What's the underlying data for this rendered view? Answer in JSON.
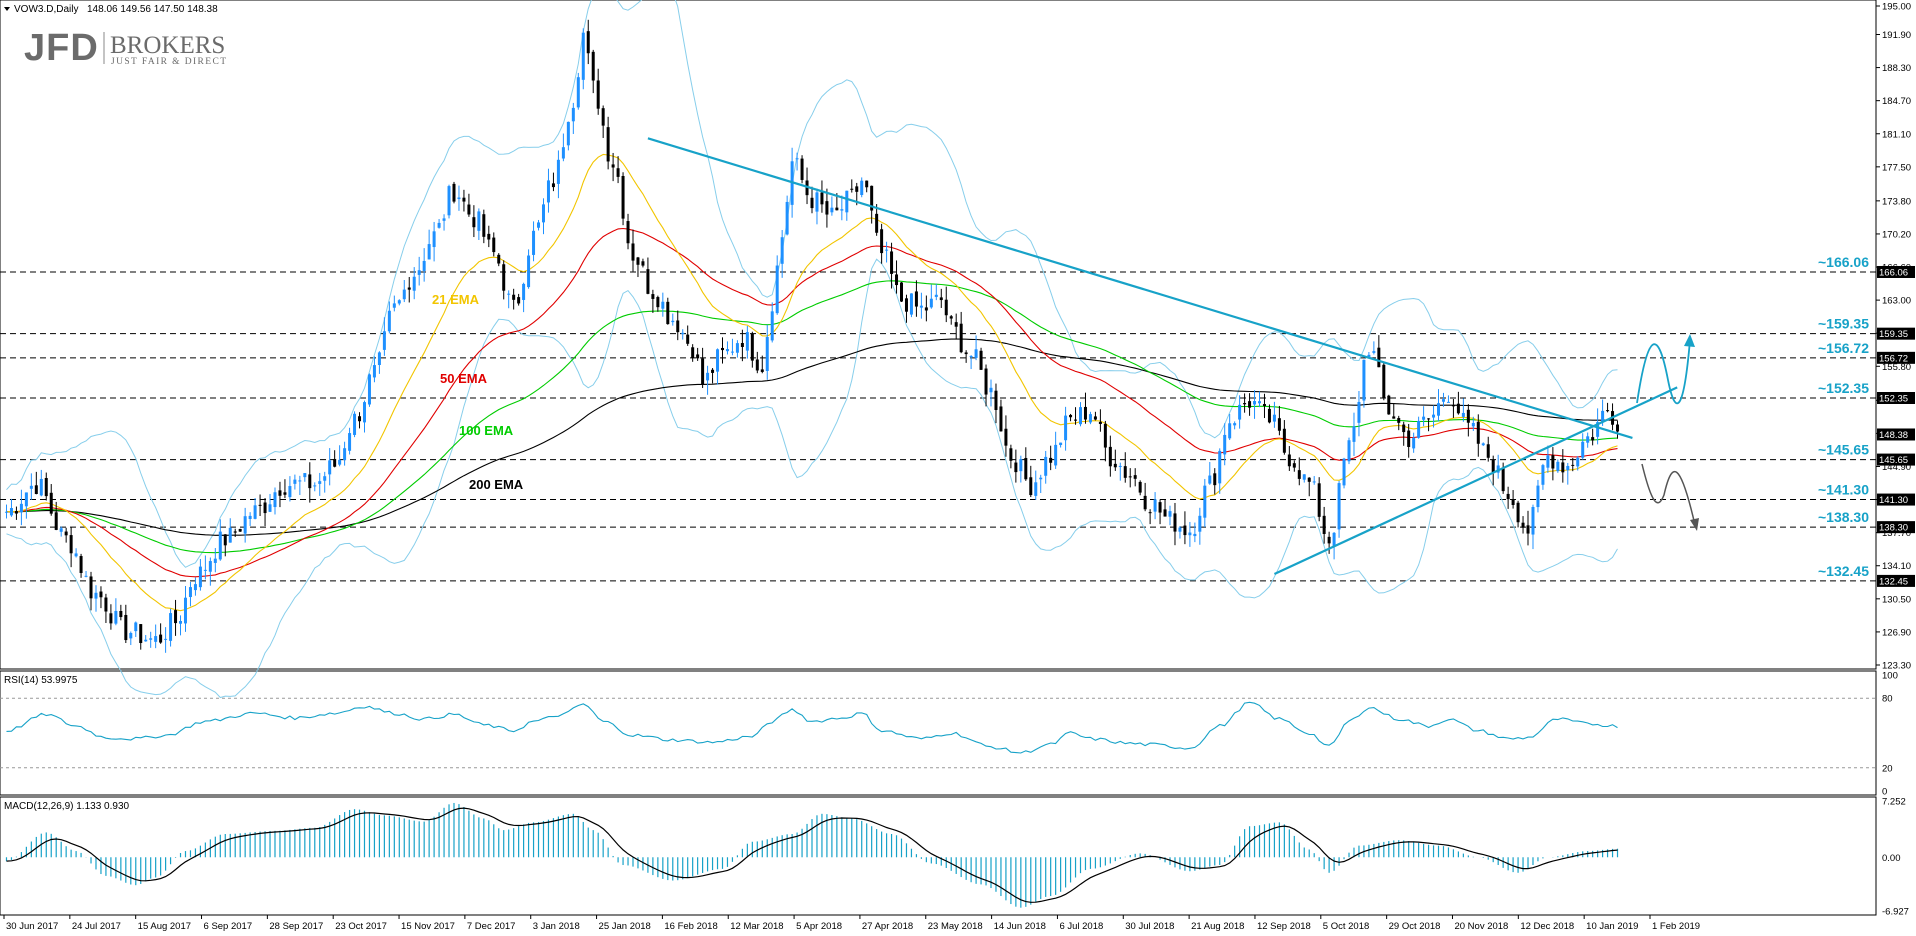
{
  "header": {
    "symbol_label": "VOW3.D,Daily",
    "ohlc_label": "148.06 149.56 147.50 148.38"
  },
  "logo": {
    "jfd": "JFD",
    "brokers": "BROKERS",
    "tagline": "JUST FAIR & DIRECT"
  },
  "colors": {
    "candle_up": "#1e90ff",
    "candle_down": "#000000",
    "ema21": "#f2c500",
    "ema50": "#e00000",
    "ema100": "#00cc00",
    "ema200": "#000000",
    "bollinger": "#87ceeb",
    "trendline": "#17a2c8",
    "level_label": "#17a2c8",
    "rsi_line": "#17a2c8",
    "macd_hist": "#17a2c8",
    "macd_signal": "#000000"
  },
  "chart_data": {
    "type": "candlestick",
    "x_ticks": [
      "30 Jun 2017",
      "24 Jul 2017",
      "15 Aug 2017",
      "6 Sep 2017",
      "28 Sep 2017",
      "23 Oct 2017",
      "15 Nov 2017",
      "7 Dec 2017",
      "3 Jan 2018",
      "25 Jan 2018",
      "16 Feb 2018",
      "12 Mar 2018",
      "5 Apr 2018",
      "27 Apr 2018",
      "23 May 2018",
      "14 Jun 2018",
      "6 Jul 2018",
      "30 Jul 2018",
      "21 Aug 2018",
      "12 Sep 2018",
      "5 Oct 2018",
      "29 Oct 2018",
      "20 Nov 2018",
      "12 Dec 2018",
      "10 Jan 2019",
      "1 Feb 2019"
    ],
    "y_ticks": [
      "195.00",
      "191.90",
      "188.30",
      "184.70",
      "181.10",
      "177.50",
      "173.80",
      "170.20",
      "166.60",
      "163.00",
      "159.40",
      "155.80",
      "152.10",
      "148.50",
      "144.90",
      "141.30",
      "137.70",
      "134.10",
      "130.50",
      "126.90",
      "123.30"
    ],
    "y_range": [
      123.3,
      195.0
    ],
    "horizontal_levels": [
      {
        "value": 166.06,
        "label": "~166.06",
        "tag": "166.06"
      },
      {
        "value": 159.35,
        "label": "~159.35",
        "tag": "159.35"
      },
      {
        "value": 156.72,
        "label": "~156.72",
        "tag": "156.72"
      },
      {
        "value": 152.35,
        "label": "~152.35",
        "tag": "152.35"
      },
      {
        "value": 145.65,
        "label": "~145.65",
        "tag": "145.65"
      },
      {
        "value": 141.3,
        "label": "~141.30",
        "tag": "141.30"
      },
      {
        "value": 138.3,
        "label": "~138.30",
        "tag": "138.30"
      },
      {
        "value": 132.45,
        "label": "~132.45",
        "tag": "132.45"
      }
    ],
    "current_price": {
      "value": 148.38,
      "tag": "148.38"
    },
    "ema_labels": [
      "21 EMA",
      "50 EMA",
      "100 EMA",
      "200 EMA"
    ],
    "anchors": [
      [
        0,
        140
      ],
      [
        6,
        143
      ],
      [
        12,
        137
      ],
      [
        18,
        131
      ],
      [
        24,
        127
      ],
      [
        30,
        126
      ],
      [
        34,
        128
      ],
      [
        38,
        133
      ],
      [
        44,
        137
      ],
      [
        50,
        140
      ],
      [
        56,
        143
      ],
      [
        62,
        143
      ],
      [
        66,
        145
      ],
      [
        70,
        150
      ],
      [
        74,
        155
      ],
      [
        78,
        162
      ],
      [
        82,
        166
      ],
      [
        86,
        170
      ],
      [
        90,
        175
      ],
      [
        94,
        172
      ],
      [
        98,
        168
      ],
      [
        102,
        162
      ],
      [
        106,
        170
      ],
      [
        110,
        176
      ],
      [
        114,
        185
      ],
      [
        116,
        192
      ],
      [
        118,
        186
      ],
      [
        122,
        178
      ],
      [
        126,
        168
      ],
      [
        130,
        164
      ],
      [
        134,
        161
      ],
      [
        138,
        158
      ],
      [
        140,
        154
      ],
      [
        144,
        157
      ],
      [
        148,
        159
      ],
      [
        152,
        156
      ],
      [
        154,
        163
      ],
      [
        156,
        170
      ],
      [
        158,
        178
      ],
      [
        162,
        174
      ],
      [
        166,
        172
      ],
      [
        170,
        174
      ],
      [
        172,
        176
      ],
      [
        176,
        168
      ],
      [
        180,
        163
      ],
      [
        184,
        162
      ],
      [
        188,
        163
      ],
      [
        190,
        160
      ],
      [
        194,
        157
      ],
      [
        198,
        153
      ],
      [
        202,
        146
      ],
      [
        206,
        143
      ],
      [
        210,
        146
      ],
      [
        214,
        150
      ],
      [
        218,
        151
      ],
      [
        222,
        146
      ],
      [
        226,
        144
      ],
      [
        230,
        141
      ],
      [
        234,
        139
      ],
      [
        238,
        138
      ],
      [
        242,
        143
      ],
      [
        246,
        150
      ],
      [
        250,
        152
      ],
      [
        254,
        150
      ],
      [
        258,
        146
      ],
      [
        262,
        143
      ],
      [
        266,
        137
      ],
      [
        270,
        147
      ],
      [
        274,
        158
      ],
      [
        278,
        151
      ],
      [
        282,
        148
      ],
      [
        286,
        150
      ],
      [
        290,
        153
      ],
      [
        294,
        149
      ],
      [
        298,
        146
      ],
      [
        302,
        142
      ],
      [
        306,
        138
      ],
      [
        310,
        146
      ],
      [
        314,
        145
      ],
      [
        318,
        148
      ],
      [
        322,
        151
      ],
      [
        324,
        150
      ]
    ],
    "rsi": {
      "label": "RSI(14) 53.9975",
      "levels": [
        "100",
        "80",
        "20",
        "0"
      ],
      "anchors": [
        [
          0,
          52
        ],
        [
          8,
          66
        ],
        [
          14,
          56
        ],
        [
          20,
          46
        ],
        [
          26,
          45
        ],
        [
          32,
          48
        ],
        [
          40,
          60
        ],
        [
          50,
          67
        ],
        [
          58,
          63
        ],
        [
          66,
          67
        ],
        [
          72,
          73
        ],
        [
          78,
          67
        ],
        [
          84,
          62
        ],
        [
          90,
          66
        ],
        [
          96,
          57
        ],
        [
          102,
          52
        ],
        [
          106,
          60
        ],
        [
          112,
          66
        ],
        [
          116,
          75
        ],
        [
          120,
          60
        ],
        [
          126,
          48
        ],
        [
          134,
          44
        ],
        [
          142,
          42
        ],
        [
          150,
          47
        ],
        [
          154,
          60
        ],
        [
          158,
          70
        ],
        [
          162,
          60
        ],
        [
          168,
          63
        ],
        [
          172,
          67
        ],
        [
          176,
          52
        ],
        [
          184,
          45
        ],
        [
          190,
          50
        ],
        [
          198,
          38
        ],
        [
          204,
          33
        ],
        [
          210,
          40
        ],
        [
          214,
          50
        ],
        [
          218,
          45
        ],
        [
          226,
          41
        ],
        [
          230,
          40
        ],
        [
          238,
          37
        ],
        [
          244,
          56
        ],
        [
          250,
          76
        ],
        [
          256,
          62
        ],
        [
          262,
          50
        ],
        [
          266,
          38
        ],
        [
          270,
          60
        ],
        [
          274,
          72
        ],
        [
          280,
          62
        ],
        [
          286,
          56
        ],
        [
          290,
          62
        ],
        [
          296,
          52
        ],
        [
          302,
          45
        ],
        [
          306,
          46
        ],
        [
          312,
          62
        ],
        [
          318,
          58
        ],
        [
          324,
          56
        ]
      ]
    },
    "macd": {
      "label": "MACD(12,26,9) 1.133 0.930",
      "levels": [
        "7.252",
        "0.00",
        "-6.927"
      ],
      "range": [
        -6.927,
        7.252
      ],
      "anchors": [
        [
          0,
          -0.5
        ],
        [
          8,
          3.2
        ],
        [
          14,
          0.8
        ],
        [
          20,
          -2.4
        ],
        [
          26,
          -3.6
        ],
        [
          30,
          -2.6
        ],
        [
          36,
          0.8
        ],
        [
          44,
          3.0
        ],
        [
          54,
          3.4
        ],
        [
          62,
          3.8
        ],
        [
          70,
          6.2
        ],
        [
          76,
          5.4
        ],
        [
          84,
          4.6
        ],
        [
          90,
          7.0
        ],
        [
          96,
          5.0
        ],
        [
          100,
          3.5
        ],
        [
          106,
          4.5
        ],
        [
          114,
          5.6
        ],
        [
          118,
          3.5
        ],
        [
          124,
          -1.0
        ],
        [
          134,
          -3.0
        ],
        [
          144,
          -1.5
        ],
        [
          150,
          2.0
        ],
        [
          158,
          3.0
        ],
        [
          164,
          5.6
        ],
        [
          170,
          5.0
        ],
        [
          178,
          3.0
        ],
        [
          186,
          -0.8
        ],
        [
          196,
          -3.5
        ],
        [
          204,
          -6.5
        ],
        [
          210,
          -5.0
        ],
        [
          218,
          -1.5
        ],
        [
          228,
          0.5
        ],
        [
          238,
          -1.8
        ],
        [
          244,
          -1.0
        ],
        [
          250,
          4.0
        ],
        [
          256,
          4.5
        ],
        [
          262,
          1.0
        ],
        [
          266,
          -2.0
        ],
        [
          272,
          1.5
        ],
        [
          280,
          2.2
        ],
        [
          288,
          1.5
        ],
        [
          296,
          0.0
        ],
        [
          304,
          -2.0
        ],
        [
          310,
          0.0
        ],
        [
          318,
          0.8
        ],
        [
          324,
          1.1
        ]
      ]
    }
  }
}
